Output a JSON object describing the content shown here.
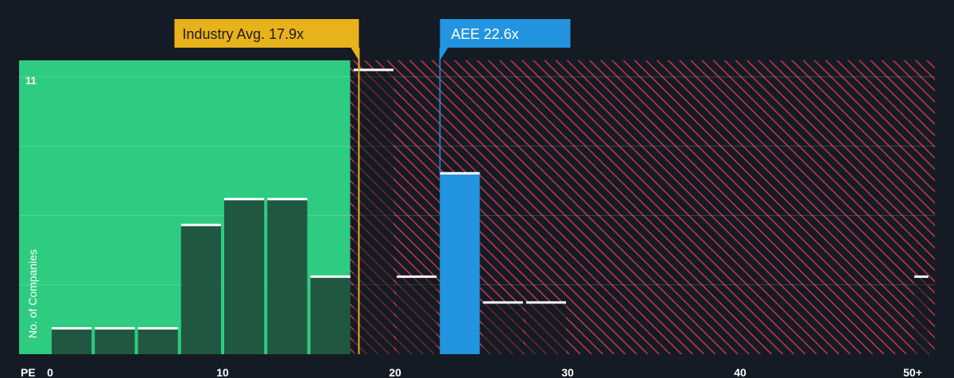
{
  "chart_data": {
    "type": "bar",
    "xlabel": "PE",
    "ylabel": "No. of Companies",
    "x_ticks": [
      {
        "value": 0,
        "label": "0"
      },
      {
        "value": 10,
        "label": "10"
      },
      {
        "value": 20,
        "label": "20"
      },
      {
        "value": 30,
        "label": "30"
      },
      {
        "value": 40,
        "label": "40"
      },
      {
        "value": 50,
        "label": "50+"
      }
    ],
    "xlim": [
      0,
      51
    ],
    "ylim": [
      0,
      11
    ],
    "y_max_label": "11",
    "bins": [
      {
        "x0": 0,
        "x1": 2.5,
        "value": 1
      },
      {
        "x0": 2.5,
        "x1": 5,
        "value": 1
      },
      {
        "x0": 5,
        "x1": 7.5,
        "value": 1
      },
      {
        "x0": 7.5,
        "x1": 10,
        "value": 5
      },
      {
        "x0": 10,
        "x1": 12.5,
        "value": 6
      },
      {
        "x0": 12.5,
        "x1": 15,
        "value": 6
      },
      {
        "x0": 15,
        "x1": 17.5,
        "value": 3
      },
      {
        "x0": 17.5,
        "x1": 20,
        "value": 11
      },
      {
        "x0": 20,
        "x1": 22.5,
        "value": 3
      },
      {
        "x0": 22.5,
        "x1": 25,
        "value": 7,
        "highlight": true
      },
      {
        "x0": 25,
        "x1": 27.5,
        "value": 2
      },
      {
        "x0": 27.5,
        "x1": 30,
        "value": 2
      },
      {
        "x0": 50,
        "x1": 51,
        "value": 3
      }
    ],
    "industry_avg": {
      "value": 17.9,
      "label": "Industry Avg. 17.9x"
    },
    "company": {
      "value": 22.6,
      "label": "AEE 22.6x"
    },
    "fair_zone_end": 17.4
  },
  "colors": {
    "background": "#151b24",
    "undervalued_fill": "#2ecc80",
    "bar_fill": "#1f4d3c",
    "bar_top": "#ffffff",
    "highlight_bar": "#2394e0",
    "hatch": "#c9364a",
    "industry_avg": "#e8b21b",
    "company": "#2394e0",
    "grid": "#3a4a52"
  }
}
